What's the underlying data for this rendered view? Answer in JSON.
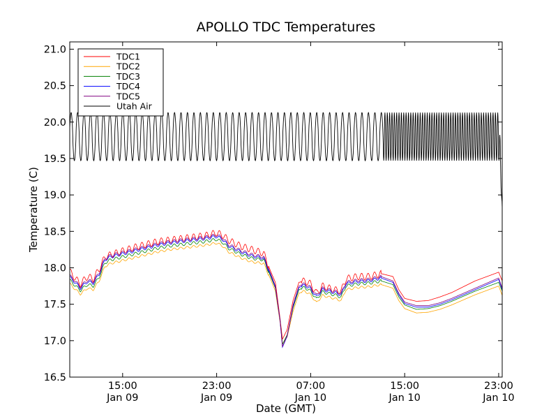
{
  "chart_data": {
    "type": "line",
    "title": "APOLLO TDC Temperatures",
    "xlabel": "Date (GMT)",
    "ylabel": "Temperature (C)",
    "x_unit": "hours since 2009-01-09 00:00 GMT",
    "xlim": [
      10.5,
      47.3
    ],
    "ylim": [
      16.5,
      21.1
    ],
    "yticks": [
      "16.5",
      "17.0",
      "17.5",
      "18.0",
      "18.5",
      "19.0",
      "19.5",
      "20.0",
      "20.5",
      "21.0"
    ],
    "ytick_values": [
      16.5,
      17.0,
      17.5,
      18.0,
      18.5,
      19.0,
      19.5,
      20.0,
      20.5,
      21.0
    ],
    "xticks": [
      {
        "x": 15,
        "time": "15:00",
        "date": "Jan 09"
      },
      {
        "x": 23,
        "time": "23:00",
        "date": "Jan 09"
      },
      {
        "x": 31,
        "time": "07:00",
        "date": "Jan 10"
      },
      {
        "x": 39,
        "time": "15:00",
        "date": "Jan 10"
      },
      {
        "x": 47,
        "time": "23:00",
        "date": "Jan 10"
      }
    ],
    "legend_position": "top-left",
    "series": [
      {
        "name": "TDC1",
        "color": "#ff0000",
        "ripple": 0.045,
        "x": [
          10.5,
          11.0,
          11.4,
          12.0,
          12.5,
          13.0,
          13.5,
          14.0,
          15.0,
          16.0,
          17.0,
          18.0,
          19.0,
          20.0,
          21.0,
          22.0,
          23.0,
          23.5,
          24.0,
          25.0,
          26.0,
          27.0,
          27.6,
          28.0,
          28.4,
          28.6,
          29.0,
          29.5,
          30.0,
          30.5,
          31.0,
          31.5,
          32.0,
          33.0,
          33.6,
          34.0,
          35.0,
          36.0,
          37.0,
          38.0,
          38.5,
          39.0,
          40.0,
          41.0,
          42.0,
          43.0,
          44.0,
          45.0,
          46.0,
          47.0,
          47.3
        ],
        "y": [
          17.95,
          17.85,
          17.78,
          17.88,
          17.85,
          17.98,
          18.15,
          18.18,
          18.23,
          18.28,
          18.32,
          18.36,
          18.38,
          18.4,
          18.42,
          18.44,
          18.48,
          18.45,
          18.38,
          18.3,
          18.25,
          18.2,
          17.95,
          17.8,
          17.3,
          17.02,
          17.15,
          17.55,
          17.8,
          17.82,
          17.78,
          17.65,
          17.75,
          17.7,
          17.68,
          17.85,
          17.88,
          17.88,
          17.92,
          17.88,
          17.7,
          17.58,
          17.54,
          17.55,
          17.6,
          17.66,
          17.74,
          17.82,
          17.88,
          17.94,
          17.82
        ]
      },
      {
        "name": "TDC2",
        "color": "#ffa500",
        "ripple": 0.015,
        "x": [
          10.5,
          11.0,
          11.4,
          12.0,
          12.5,
          13.0,
          13.5,
          14.0,
          15.0,
          16.0,
          17.0,
          18.0,
          19.0,
          20.0,
          21.0,
          22.0,
          23.0,
          23.5,
          24.0,
          25.0,
          26.0,
          27.0,
          27.6,
          28.0,
          28.4,
          28.6,
          29.0,
          29.5,
          30.0,
          30.5,
          31.0,
          31.5,
          32.0,
          33.0,
          33.6,
          34.0,
          35.0,
          36.0,
          37.0,
          38.0,
          38.5,
          39.0,
          40.0,
          41.0,
          42.0,
          43.0,
          44.0,
          45.0,
          46.0,
          47.0,
          47.3
        ],
        "y": [
          17.78,
          17.7,
          17.64,
          17.72,
          17.7,
          17.82,
          18.02,
          18.06,
          18.1,
          18.14,
          18.18,
          18.22,
          18.25,
          18.27,
          18.29,
          18.31,
          18.34,
          18.3,
          18.22,
          18.14,
          18.08,
          18.06,
          17.84,
          17.68,
          17.25,
          16.96,
          17.05,
          17.4,
          17.65,
          17.68,
          17.63,
          17.52,
          17.62,
          17.58,
          17.55,
          17.7,
          17.73,
          17.74,
          17.77,
          17.72,
          17.55,
          17.44,
          17.38,
          17.39,
          17.43,
          17.49,
          17.56,
          17.63,
          17.69,
          17.75,
          17.62
        ]
      },
      {
        "name": "TDC3",
        "color": "#008000",
        "ripple": 0.02,
        "x": [
          10.5,
          11.0,
          11.4,
          12.0,
          12.5,
          13.0,
          13.5,
          14.0,
          15.0,
          16.0,
          17.0,
          18.0,
          19.0,
          20.0,
          21.0,
          22.0,
          23.0,
          23.5,
          24.0,
          25.0,
          26.0,
          27.0,
          27.6,
          28.0,
          28.4,
          28.6,
          29.0,
          29.5,
          30.0,
          30.5,
          31.0,
          31.5,
          32.0,
          33.0,
          33.6,
          34.0,
          35.0,
          36.0,
          37.0,
          38.0,
          38.5,
          39.0,
          40.0,
          41.0,
          42.0,
          43.0,
          44.0,
          45.0,
          46.0,
          47.0,
          47.3
        ],
        "y": [
          17.83,
          17.75,
          17.69,
          17.77,
          17.75,
          17.87,
          18.07,
          18.11,
          18.15,
          18.19,
          18.23,
          18.27,
          18.3,
          18.32,
          18.34,
          18.36,
          18.39,
          18.35,
          18.27,
          18.19,
          18.13,
          18.11,
          17.88,
          17.72,
          17.28,
          16.95,
          17.08,
          17.45,
          17.7,
          17.73,
          17.68,
          17.57,
          17.67,
          17.63,
          17.6,
          17.75,
          17.78,
          17.79,
          17.82,
          17.77,
          17.6,
          17.49,
          17.43,
          17.44,
          17.48,
          17.54,
          17.61,
          17.68,
          17.74,
          17.8,
          17.68
        ]
      },
      {
        "name": "TDC4",
        "color": "#0000ff",
        "ripple": 0.02,
        "x": [
          10.5,
          11.0,
          11.4,
          12.0,
          12.5,
          13.0,
          13.5,
          14.0,
          15.0,
          16.0,
          17.0,
          18.0,
          19.0,
          20.0,
          21.0,
          22.0,
          23.0,
          23.5,
          24.0,
          25.0,
          26.0,
          27.0,
          27.6,
          28.0,
          28.4,
          28.6,
          29.0,
          29.5,
          30.0,
          30.5,
          31.0,
          31.5,
          32.0,
          33.0,
          33.6,
          34.0,
          35.0,
          36.0,
          37.0,
          38.0,
          38.5,
          39.0,
          40.0,
          41.0,
          42.0,
          43.0,
          44.0,
          45.0,
          46.0,
          47.0,
          47.3
        ],
        "y": [
          17.87,
          17.79,
          17.72,
          17.81,
          17.79,
          17.91,
          18.11,
          18.15,
          18.19,
          18.23,
          18.27,
          18.31,
          18.34,
          18.36,
          18.38,
          18.4,
          18.43,
          18.39,
          18.3,
          18.22,
          18.16,
          18.13,
          17.9,
          17.73,
          17.27,
          16.91,
          17.06,
          17.47,
          17.73,
          17.76,
          17.71,
          17.6,
          17.7,
          17.66,
          17.63,
          17.78,
          17.81,
          17.82,
          17.86,
          17.8,
          17.63,
          17.51,
          17.46,
          17.46,
          17.5,
          17.56,
          17.63,
          17.7,
          17.77,
          17.84,
          17.7
        ]
      },
      {
        "name": "TDC5",
        "color": "#800080",
        "ripple": 0.02,
        "x": [
          10.5,
          11.0,
          11.4,
          12.0,
          12.5,
          13.0,
          13.5,
          14.0,
          15.0,
          16.0,
          17.0,
          18.0,
          19.0,
          20.0,
          21.0,
          22.0,
          23.0,
          23.5,
          24.0,
          25.0,
          26.0,
          27.0,
          27.6,
          28.0,
          28.4,
          28.6,
          29.0,
          29.5,
          30.0,
          30.5,
          31.0,
          31.5,
          32.0,
          33.0,
          33.6,
          34.0,
          35.0,
          36.0,
          37.0,
          38.0,
          38.5,
          39.0,
          40.0,
          41.0,
          42.0,
          43.0,
          44.0,
          45.0,
          46.0,
          47.0,
          47.3
        ],
        "y": [
          17.89,
          17.81,
          17.74,
          17.83,
          17.81,
          17.93,
          18.13,
          18.17,
          18.21,
          18.25,
          18.29,
          18.33,
          18.36,
          18.38,
          18.4,
          18.42,
          18.45,
          18.41,
          18.32,
          18.24,
          18.18,
          18.15,
          17.92,
          17.75,
          17.28,
          16.92,
          17.07,
          17.49,
          17.75,
          17.78,
          17.73,
          17.62,
          17.72,
          17.68,
          17.65,
          17.8,
          17.83,
          17.84,
          17.88,
          17.82,
          17.65,
          17.53,
          17.48,
          17.48,
          17.52,
          17.58,
          17.65,
          17.72,
          17.79,
          17.86,
          17.72
        ]
      },
      {
        "name": "Utah Air",
        "color": "#000000",
        "oscillation": {
          "center": 19.83,
          "amplitude": 0.3,
          "period_slow_h": 0.55,
          "period_fast_h": 0.2,
          "fast_start_h": 37.2,
          "end_drop_to": 18.82
        }
      }
    ]
  }
}
